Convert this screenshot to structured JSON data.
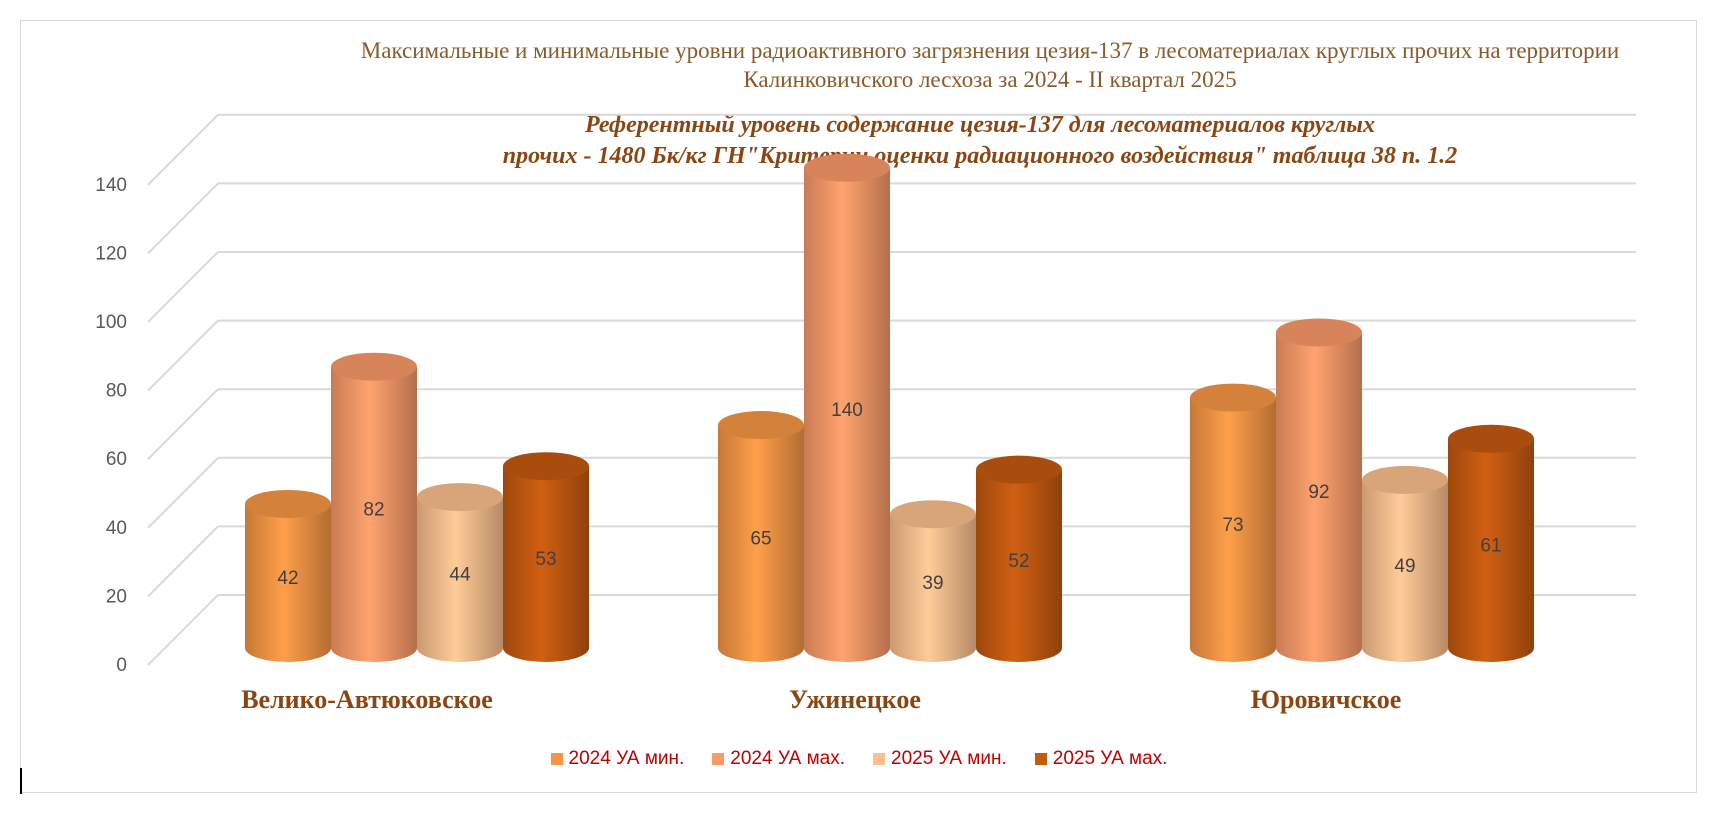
{
  "chart_data": {
    "type": "bar",
    "title": "Максимальные и минимальные уровни радиоактивного загрязнения цезия-137 в лесоматериалах круглых прочих на территории Калинковичского лесхоза за 2024 - II квартал 2025",
    "subtitle_line1": "Референтный уровень содержание цезия-137 для лесоматериалов круглых",
    "subtitle_line2": "прочих - 1480 Бк/кг ГН\"Критерии оценки радиационного воздействия\" таблица 38 п. 1.2",
    "categories": [
      "Велико-Автюковское",
      "Ужинецкое",
      "Юровичское"
    ],
    "series": [
      {
        "name": "2024 УА мин.",
        "values": [
          42,
          65,
          73
        ],
        "color": "#f79646"
      },
      {
        "name": "2024 УА мах.",
        "values": [
          82,
          140,
          92
        ],
        "color": "#fb9a69"
      },
      {
        "name": "2025 УА мин.",
        "values": [
          44,
          39,
          49
        ],
        "color": "#fbc08f"
      },
      {
        "name": "2025 УА мах.",
        "values": [
          53,
          52,
          61
        ],
        "color": "#c55a11"
      }
    ],
    "y_ticks": [
      "0",
      "20",
      "40",
      "60",
      "80",
      "100",
      "120",
      "140"
    ],
    "ylim": [
      0,
      140
    ],
    "grid": true,
    "legend_position": "bottom"
  }
}
